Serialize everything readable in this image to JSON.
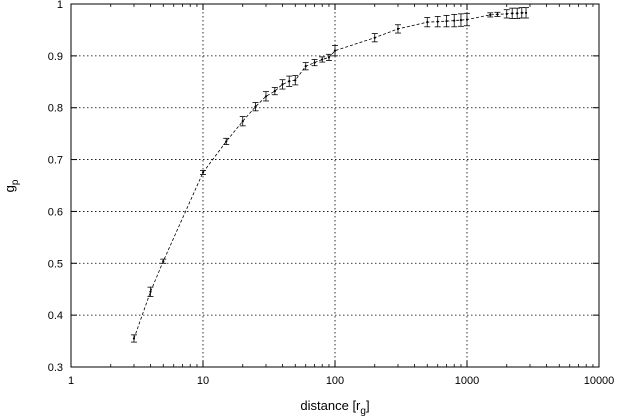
{
  "chart_data": {
    "type": "line",
    "title": "",
    "xlabel": "distance [r",
    "xlabel_sub": "g",
    "xlabel_end": "]",
    "ylabel": "g",
    "ylabel_sub": "p",
    "xscale": "log",
    "xlim": [
      1,
      10000
    ],
    "ylim": [
      0.3,
      1
    ],
    "x_ticks": [
      "1",
      "10",
      "100",
      "1000",
      "10000"
    ],
    "y_ticks": [
      "0.3",
      "0.4",
      "0.5",
      "0.6",
      "0.7",
      "0.8",
      "0.9",
      "1"
    ],
    "grid": true,
    "series": [
      {
        "points": [
          {
            "x": 3,
            "y": 0.355,
            "err": 0.007
          },
          {
            "x": 4,
            "y": 0.445,
            "err": 0.009
          },
          {
            "x": 5,
            "y": 0.504,
            "err": 0.004
          },
          {
            "x": 10,
            "y": 0.675,
            "err": 0.004
          },
          {
            "x": 15,
            "y": 0.735,
            "err": 0.006
          },
          {
            "x": 20,
            "y": 0.774,
            "err": 0.009
          },
          {
            "x": 25,
            "y": 0.802,
            "err": 0.008
          },
          {
            "x": 30,
            "y": 0.822,
            "err": 0.009
          },
          {
            "x": 35,
            "y": 0.832,
            "err": 0.007
          },
          {
            "x": 40,
            "y": 0.845,
            "err": 0.009
          },
          {
            "x": 45,
            "y": 0.851,
            "err": 0.01
          },
          {
            "x": 50,
            "y": 0.853,
            "err": 0.009
          },
          {
            "x": 60,
            "y": 0.88,
            "err": 0.007
          },
          {
            "x": 70,
            "y": 0.887,
            "err": 0.006
          },
          {
            "x": 80,
            "y": 0.893,
            "err": 0.005
          },
          {
            "x": 90,
            "y": 0.897,
            "err": 0.006
          },
          {
            "x": 100,
            "y": 0.91,
            "err": 0.01
          },
          {
            "x": 200,
            "y": 0.935,
            "err": 0.008
          },
          {
            "x": 300,
            "y": 0.952,
            "err": 0.008
          },
          {
            "x": 500,
            "y": 0.965,
            "err": 0.009
          },
          {
            "x": 600,
            "y": 0.966,
            "err": 0.01
          },
          {
            "x": 700,
            "y": 0.967,
            "err": 0.011
          },
          {
            "x": 800,
            "y": 0.968,
            "err": 0.012
          },
          {
            "x": 900,
            "y": 0.969,
            "err": 0.012
          },
          {
            "x": 1000,
            "y": 0.97,
            "err": 0.012
          },
          {
            "x": 1500,
            "y": 0.979,
            "err": 0.004
          },
          {
            "x": 1700,
            "y": 0.98,
            "err": 0.004
          },
          {
            "x": 2000,
            "y": 0.981,
            "err": 0.008
          },
          {
            "x": 2200,
            "y": 0.982,
            "err": 0.01
          },
          {
            "x": 2400,
            "y": 0.982,
            "err": 0.01
          },
          {
            "x": 2600,
            "y": 0.983,
            "err": 0.01
          },
          {
            "x": 2800,
            "y": 0.983,
            "err": 0.01
          }
        ]
      }
    ]
  }
}
